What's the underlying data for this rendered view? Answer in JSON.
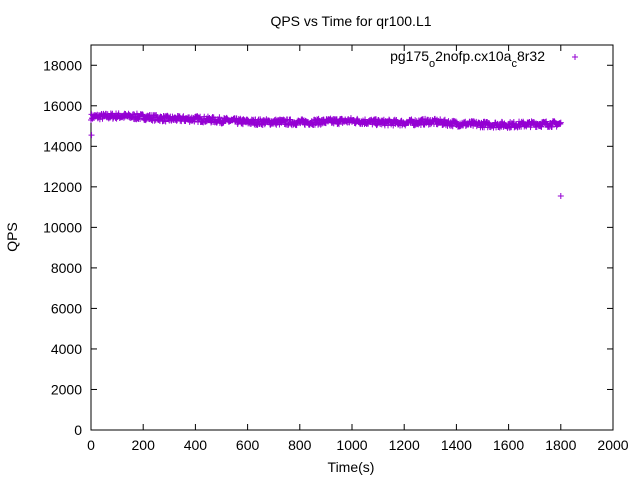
{
  "chart_data": {
    "type": "scatter",
    "title": "QPS vs Time for qr100.L1",
    "xlabel": "Time(s)",
    "ylabel": "QPS",
    "xlim": [
      0,
      2000
    ],
    "ylim": [
      0,
      19000
    ],
    "xticks": [
      0,
      200,
      400,
      600,
      800,
      1000,
      1200,
      1400,
      1600,
      1800,
      2000
    ],
    "yticks": [
      0,
      2000,
      4000,
      6000,
      8000,
      10000,
      12000,
      14000,
      16000,
      18000
    ],
    "grid": false,
    "legend_position": "top-right",
    "series": [
      {
        "name_parts": [
          "pg175",
          "o",
          "2nofp.cx10a",
          "c",
          "8r32"
        ],
        "color": "#9400d3",
        "marker": "+",
        "dense_band": {
          "x": [
            0,
            100,
            200,
            300,
            400,
            500,
            600,
            700,
            800,
            900,
            1000,
            1100,
            1200,
            1300,
            1400,
            1500,
            1600,
            1700,
            1800
          ],
          "y": [
            15450,
            15500,
            15450,
            15350,
            15350,
            15280,
            15200,
            15200,
            15180,
            15220,
            15260,
            15180,
            15160,
            15220,
            15120,
            15080,
            15060,
            15100,
            15100
          ],
          "spread": 150
        },
        "outliers": [
          {
            "x": 2,
            "y": 14550
          },
          {
            "x": 1800,
            "y": 11550
          }
        ]
      }
    ]
  }
}
